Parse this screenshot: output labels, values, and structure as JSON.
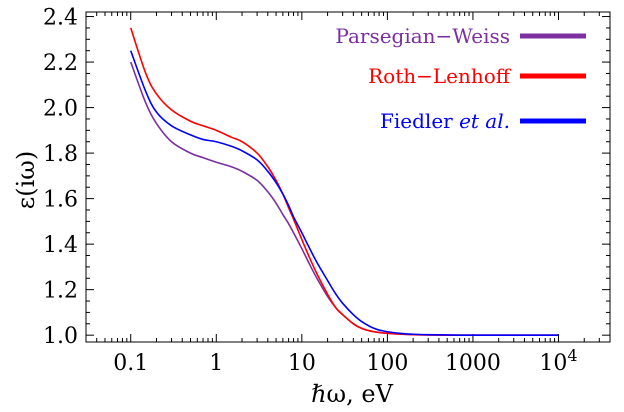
{
  "chart_data": {
    "type": "line",
    "xlabel": "ℏω, eV",
    "ylabel": "ε(iω)",
    "x_scale": "log",
    "xlim": [
      0.03,
      40000
    ],
    "ylim": [
      0.97,
      2.42
    ],
    "x_ticks": [
      {
        "value": 0.1,
        "label": "0.1"
      },
      {
        "value": 1,
        "label": "1"
      },
      {
        "value": 10,
        "label": "10"
      },
      {
        "value": 100,
        "label": "100"
      },
      {
        "value": 1000,
        "label": "1000"
      },
      {
        "value": 10000,
        "label": "10",
        "exponent": "4"
      }
    ],
    "y_ticks": [
      {
        "value": 1.0,
        "label": "1.0"
      },
      {
        "value": 1.2,
        "label": "1.2"
      },
      {
        "value": 1.4,
        "label": "1.4"
      },
      {
        "value": 1.6,
        "label": "1.6"
      },
      {
        "value": 1.8,
        "label": "1.8"
      },
      {
        "value": 2.0,
        "label": "2.0"
      },
      {
        "value": 2.2,
        "label": "2.2"
      },
      {
        "value": 2.4,
        "label": "2.4"
      }
    ],
    "grid": false,
    "legend_position": "top-right",
    "series": [
      {
        "name": "Parsegian−Weiss",
        "name_parts": [
          "Parsegian−Weiss"
        ],
        "color": "#7b2fa0",
        "x": [
          0.1,
          0.15,
          0.2,
          0.3,
          0.5,
          0.7,
          1,
          1.5,
          2,
          3,
          4,
          5,
          6,
          7,
          8,
          10,
          12,
          15,
          20,
          25,
          30,
          40,
          50,
          70,
          100,
          150,
          200,
          300,
          500,
          1000,
          10000
        ],
        "y": [
          2.2,
          2.02,
          1.93,
          1.85,
          1.8,
          1.78,
          1.76,
          1.74,
          1.72,
          1.68,
          1.63,
          1.58,
          1.53,
          1.49,
          1.45,
          1.38,
          1.32,
          1.25,
          1.17,
          1.12,
          1.09,
          1.05,
          1.03,
          1.015,
          1.008,
          1.004,
          1.002,
          1.001,
          1.0,
          1.0,
          1.0
        ]
      },
      {
        "name": "Roth−Lenhoff",
        "name_parts": [
          "Roth−Lenhoff"
        ],
        "color": "#ff0000",
        "x": [
          0.1,
          0.15,
          0.2,
          0.3,
          0.5,
          0.7,
          1,
          1.5,
          2,
          3,
          4,
          5,
          6,
          7,
          8,
          10,
          12,
          15,
          20,
          25,
          30,
          40,
          50,
          70,
          100,
          150,
          200,
          300,
          500,
          1000,
          10000
        ],
        "y": [
          2.35,
          2.15,
          2.06,
          1.99,
          1.94,
          1.92,
          1.9,
          1.87,
          1.85,
          1.8,
          1.74,
          1.68,
          1.62,
          1.56,
          1.51,
          1.42,
          1.35,
          1.27,
          1.18,
          1.12,
          1.09,
          1.05,
          1.03,
          1.015,
          1.008,
          1.004,
          1.002,
          1.001,
          1.0,
          1.0,
          1.0
        ]
      },
      {
        "name": "Fiedler et al.",
        "name_parts": [
          "Fiedler ",
          "et al."
        ],
        "color": "#0000ff",
        "x": [
          0.1,
          0.15,
          0.2,
          0.3,
          0.5,
          0.7,
          1,
          1.5,
          2,
          3,
          4,
          5,
          6,
          7,
          8,
          10,
          12,
          15,
          20,
          25,
          30,
          40,
          50,
          70,
          100,
          150,
          200,
          300,
          500,
          1000,
          10000
        ],
        "y": [
          2.25,
          2.07,
          1.98,
          1.92,
          1.88,
          1.86,
          1.85,
          1.83,
          1.81,
          1.77,
          1.72,
          1.67,
          1.62,
          1.57,
          1.52,
          1.45,
          1.39,
          1.32,
          1.24,
          1.18,
          1.14,
          1.09,
          1.06,
          1.03,
          1.015,
          1.007,
          1.004,
          1.002,
          1.001,
          1.0,
          1.0
        ]
      }
    ]
  }
}
